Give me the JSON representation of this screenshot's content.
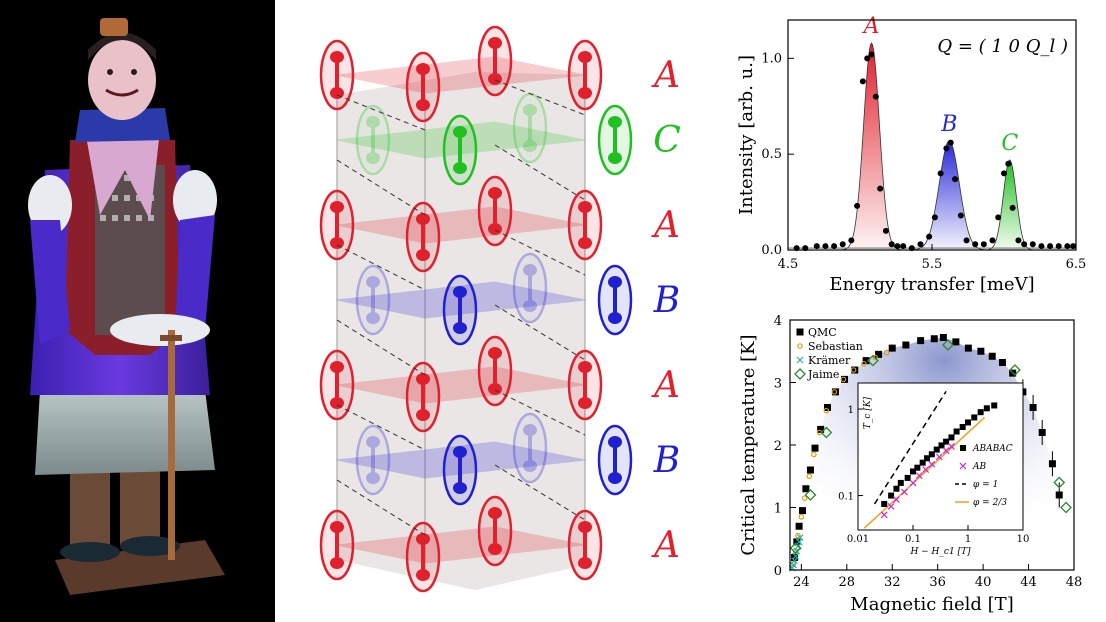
{
  "lattice": {
    "layer_labels": [
      "A",
      "C",
      "A",
      "B",
      "A",
      "B",
      "A"
    ],
    "colors": {
      "A": "#e0202c",
      "B": "#2020d0",
      "C": "#20c020"
    }
  },
  "chart_data": [
    {
      "type": "line",
      "title": "",
      "annotation": "Q = ( 1  0  Q_l )",
      "xlabel": "Energy transfer [meV]",
      "ylabel": "Intensity [arb. u.]",
      "xlim": [
        4.5,
        6.5
      ],
      "ylim": [
        0,
        1.2
      ],
      "xticks": [
        "4.5",
        "5.5",
        "6.5"
      ],
      "yticks": [
        "0.0",
        "0.5",
        "1.0"
      ],
      "peaks": [
        {
          "name": "A",
          "center": 5.08,
          "amplitude": 1.08,
          "width": 0.055,
          "color": "#e0202c"
        },
        {
          "name": "B",
          "center": 5.62,
          "amplitude": 0.57,
          "width": 0.07,
          "color": "#2828d8"
        },
        {
          "name": "C",
          "center": 6.04,
          "amplitude": 0.47,
          "width": 0.045,
          "color": "#20c020"
        }
      ],
      "x": [
        4.56,
        4.62,
        4.7,
        4.76,
        4.82,
        4.88,
        4.94,
        4.98,
        5.02,
        5.05,
        5.08,
        5.11,
        5.14,
        5.18,
        5.22,
        5.26,
        5.3,
        5.36,
        5.42,
        5.48,
        5.52,
        5.56,
        5.6,
        5.63,
        5.66,
        5.7,
        5.74,
        5.8,
        5.86,
        5.92,
        5.96,
        6.0,
        6.03,
        6.06,
        6.1,
        6.14,
        6.2,
        6.26,
        6.32,
        6.38,
        6.44,
        6.48
      ],
      "y": [
        0.01,
        0.01,
        0.02,
        0.02,
        0.02,
        0.03,
        0.05,
        0.23,
        0.88,
        1.0,
        1.02,
        0.8,
        0.32,
        0.1,
        0.03,
        0.02,
        0.02,
        0.01,
        0.03,
        0.07,
        0.17,
        0.4,
        0.53,
        0.56,
        0.37,
        0.18,
        0.05,
        0.03,
        0.03,
        0.05,
        0.17,
        0.4,
        0.45,
        0.22,
        0.05,
        0.03,
        0.03,
        0.02,
        0.02,
        0.02,
        0.02,
        0.02
      ]
    },
    {
      "type": "scatter",
      "title": "",
      "xlabel": "Magnetic field [T]",
      "ylabel": "Critical temperature [K]",
      "xlim": [
        23,
        48
      ],
      "ylim": [
        0,
        4
      ],
      "xticks": [
        "24",
        "28",
        "32",
        "36",
        "40",
        "44",
        "48"
      ],
      "yticks": [
        "0",
        "1",
        "2",
        "3",
        "4"
      ],
      "series": [
        {
          "name": "QMC",
          "marker": "square",
          "color": "#000000",
          "x": [
            23.4,
            23.6,
            23.8,
            24.1,
            24.4,
            24.8,
            25.2,
            25.7,
            26.3,
            27,
            27.8,
            28.7,
            29.7,
            30.8,
            32,
            33.2,
            34.5,
            35.7,
            36.5,
            37.6,
            38.7,
            39.8,
            40.8,
            41.7,
            42.6,
            43.5,
            44.4,
            45.2,
            46.1,
            46.7
          ],
          "y": [
            0.2,
            0.45,
            0.7,
            0.95,
            1.3,
            1.6,
            1.95,
            2.25,
            2.6,
            2.85,
            3.05,
            3.2,
            3.35,
            3.45,
            3.55,
            3.6,
            3.67,
            3.7,
            3.72,
            3.65,
            3.55,
            3.5,
            3.42,
            3.32,
            3.15,
            2.85,
            2.6,
            2.2,
            1.7,
            1.2
          ]
        },
        {
          "name": "Sebastian",
          "marker": "circle",
          "color": "#d9a000",
          "x": [
            23.3,
            23.5,
            23.7,
            24,
            24.3,
            24.7,
            25.1,
            25.6,
            26.2,
            26.9,
            27.7,
            28.6,
            29.5,
            30.5,
            31.5
          ],
          "y": [
            0.1,
            0.3,
            0.55,
            0.85,
            1.15,
            1.5,
            1.85,
            2.2,
            2.55,
            2.85,
            3.05,
            3.2,
            3.3,
            3.4,
            3.48
          ]
        },
        {
          "name": "Krämer",
          "marker": "x",
          "color": "#20b0b0",
          "x": [
            23.2,
            23.3,
            23.4,
            23.5,
            23.6,
            23.7,
            23.8,
            23.9
          ],
          "y": [
            0.03,
            0.08,
            0.15,
            0.22,
            0.3,
            0.38,
            0.45,
            0.52
          ]
        },
        {
          "name": "Jaime",
          "marker": "diamond",
          "color": "#2a8a2a",
          "x": [
            23.5,
            24.8,
            26.2,
            30.3,
            36.9,
            42.8,
            46.7,
            47.3
          ],
          "y": [
            0.35,
            1.2,
            2.2,
            3.35,
            3.6,
            3.2,
            1.4,
            1.0
          ]
        }
      ],
      "inset": {
        "type": "scatter",
        "xlabel": "H − H_c1 [T]",
        "ylabel": "T_c [K]",
        "xlim": [
          0.01,
          10
        ],
        "ylim": [
          0.04,
          2
        ],
        "xticks": [
          "0.01",
          "0.1",
          "1",
          "10"
        ],
        "yticks": [
          "0.1",
          "1"
        ],
        "series": [
          {
            "name": "ABABAC",
            "marker": "square",
            "color": "#000000",
            "x": [
              0.03,
              0.04,
              0.05,
              0.06,
              0.08,
              0.1,
              0.12,
              0.15,
              0.18,
              0.22,
              0.27,
              0.33,
              0.4,
              0.5,
              0.62,
              0.8,
              1.0,
              1.3,
              1.7,
              2.2,
              3.0
            ],
            "y": [
              0.08,
              0.1,
              0.12,
              0.14,
              0.16,
              0.19,
              0.21,
              0.24,
              0.27,
              0.3,
              0.34,
              0.38,
              0.42,
              0.47,
              0.55,
              0.62,
              0.7,
              0.8,
              0.92,
              1.02,
              1.1
            ]
          },
          {
            "name": "AB",
            "marker": "x",
            "color": "#d020d0",
            "x": [
              0.03,
              0.04,
              0.05,
              0.07,
              0.1,
              0.13,
              0.17,
              0.22,
              0.3,
              0.4,
              0.5
            ],
            "y": [
              0.06,
              0.075,
              0.09,
              0.11,
              0.14,
              0.17,
              0.2,
              0.23,
              0.28,
              0.33,
              0.37
            ]
          }
        ],
        "lines": [
          {
            "name": "φ = 1",
            "style": "dashed",
            "color": "#000000"
          },
          {
            "name": "φ = 2/3",
            "style": "solid",
            "color": "#f0a020"
          }
        ]
      }
    }
  ]
}
